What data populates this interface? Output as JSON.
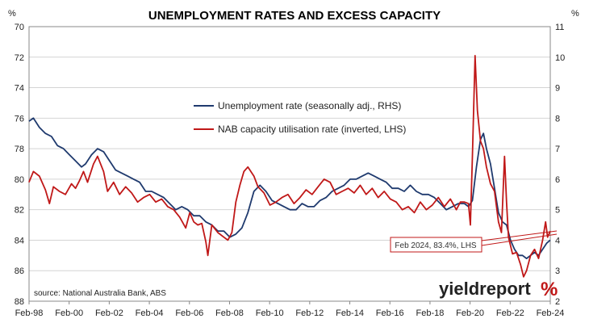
{
  "chart_data": {
    "type": "line",
    "title": "UNEMPLOYMENT RATES AND EXCESS CAPACITY",
    "left_axis": {
      "unit": "%",
      "min": 70,
      "max": 88,
      "inverted": true,
      "ticks": [
        "70",
        "72",
        "74",
        "76",
        "78",
        "80",
        "82",
        "84",
        "86",
        "88"
      ]
    },
    "right_axis": {
      "unit": "%",
      "min": 2,
      "max": 11,
      "ticks": [
        "11",
        "10",
        "9",
        "8",
        "7",
        "6",
        "5",
        "4",
        "3",
        "2"
      ]
    },
    "x_axis": {
      "start": 1998.083,
      "end": 2024.083,
      "tick_labels": [
        "Feb-98",
        "Feb-00",
        "Feb-02",
        "Feb-04",
        "Feb-06",
        "Feb-08",
        "Feb-10",
        "Feb-12",
        "Feb-14",
        "Feb-16",
        "Feb-18",
        "Feb-20",
        "Feb-22",
        "Feb-24"
      ]
    },
    "grid": "horizontal",
    "legend_position": "upper-center",
    "series": [
      {
        "name": "Unemployment rate (seasonally adj., RHS)",
        "axis": "right",
        "color": "#1f3a6e",
        "points": [
          [
            1998.08,
            7.9
          ],
          [
            1998.3,
            8.0
          ],
          [
            1998.6,
            7.7
          ],
          [
            1998.9,
            7.5
          ],
          [
            1999.2,
            7.4
          ],
          [
            1999.5,
            7.1
          ],
          [
            1999.8,
            7.0
          ],
          [
            2000.1,
            6.8
          ],
          [
            2000.4,
            6.6
          ],
          [
            2000.7,
            6.4
          ],
          [
            2000.9,
            6.5
          ],
          [
            2001.2,
            6.8
          ],
          [
            2001.5,
            7.0
          ],
          [
            2001.8,
            6.9
          ],
          [
            2002.1,
            6.6
          ],
          [
            2002.4,
            6.3
          ],
          [
            2002.7,
            6.2
          ],
          [
            2003.0,
            6.1
          ],
          [
            2003.3,
            6.0
          ],
          [
            2003.6,
            5.9
          ],
          [
            2003.9,
            5.6
          ],
          [
            2004.2,
            5.6
          ],
          [
            2004.5,
            5.5
          ],
          [
            2004.8,
            5.4
          ],
          [
            2005.1,
            5.2
          ],
          [
            2005.4,
            5.0
          ],
          [
            2005.7,
            5.1
          ],
          [
            2006.0,
            5.0
          ],
          [
            2006.3,
            4.8
          ],
          [
            2006.6,
            4.8
          ],
          [
            2006.9,
            4.6
          ],
          [
            2007.2,
            4.5
          ],
          [
            2007.5,
            4.3
          ],
          [
            2007.8,
            4.3
          ],
          [
            2008.1,
            4.1
          ],
          [
            2008.4,
            4.2
          ],
          [
            2008.7,
            4.4
          ],
          [
            2009.0,
            4.9
          ],
          [
            2009.3,
            5.6
          ],
          [
            2009.6,
            5.8
          ],
          [
            2009.9,
            5.6
          ],
          [
            2010.2,
            5.3
          ],
          [
            2010.5,
            5.2
          ],
          [
            2010.8,
            5.1
          ],
          [
            2011.1,
            5.0
          ],
          [
            2011.4,
            5.0
          ],
          [
            2011.7,
            5.2
          ],
          [
            2012.0,
            5.1
          ],
          [
            2012.3,
            5.1
          ],
          [
            2012.6,
            5.3
          ],
          [
            2012.9,
            5.4
          ],
          [
            2013.2,
            5.6
          ],
          [
            2013.5,
            5.7
          ],
          [
            2013.8,
            5.8
          ],
          [
            2014.1,
            6.0
          ],
          [
            2014.4,
            6.0
          ],
          [
            2014.7,
            6.1
          ],
          [
            2015.0,
            6.2
          ],
          [
            2015.3,
            6.1
          ],
          [
            2015.6,
            6.0
          ],
          [
            2015.9,
            5.9
          ],
          [
            2016.2,
            5.7
          ],
          [
            2016.5,
            5.7
          ],
          [
            2016.8,
            5.6
          ],
          [
            2017.1,
            5.8
          ],
          [
            2017.4,
            5.6
          ],
          [
            2017.7,
            5.5
          ],
          [
            2018.0,
            5.5
          ],
          [
            2018.3,
            5.4
          ],
          [
            2018.6,
            5.2
          ],
          [
            2018.9,
            5.0
          ],
          [
            2019.2,
            5.1
          ],
          [
            2019.5,
            5.2
          ],
          [
            2019.8,
            5.2
          ],
          [
            2020.0,
            5.1
          ],
          [
            2020.2,
            5.3
          ],
          [
            2020.4,
            6.4
          ],
          [
            2020.6,
            7.3
          ],
          [
            2020.75,
            7.5
          ],
          [
            2020.9,
            7.0
          ],
          [
            2021.1,
            6.5
          ],
          [
            2021.3,
            5.7
          ],
          [
            2021.5,
            4.9
          ],
          [
            2021.7,
            4.6
          ],
          [
            2021.9,
            4.5
          ],
          [
            2022.1,
            4.0
          ],
          [
            2022.3,
            3.7
          ],
          [
            2022.5,
            3.5
          ],
          [
            2022.7,
            3.5
          ],
          [
            2022.9,
            3.4
          ],
          [
            2023.1,
            3.5
          ],
          [
            2023.3,
            3.6
          ],
          [
            2023.5,
            3.5
          ],
          [
            2023.7,
            3.7
          ],
          [
            2023.9,
            3.9
          ],
          [
            2024.08,
            4.0
          ]
        ]
      },
      {
        "name": "NAB capacity utilisation rate (inverted, LHS)",
        "axis": "left",
        "color": "#c01818",
        "points": [
          [
            1998.08,
            80.2
          ],
          [
            1998.3,
            79.5
          ],
          [
            1998.6,
            79.8
          ],
          [
            1998.9,
            80.7
          ],
          [
            1999.1,
            81.6
          ],
          [
            1999.3,
            80.5
          ],
          [
            1999.6,
            80.8
          ],
          [
            1999.9,
            81.0
          ],
          [
            2000.2,
            80.3
          ],
          [
            2000.4,
            80.6
          ],
          [
            2000.6,
            80.1
          ],
          [
            2000.8,
            79.5
          ],
          [
            2001.0,
            80.2
          ],
          [
            2001.3,
            79.0
          ],
          [
            2001.5,
            78.5
          ],
          [
            2001.8,
            79.5
          ],
          [
            2002.0,
            80.8
          ],
          [
            2002.3,
            80.2
          ],
          [
            2002.6,
            81.0
          ],
          [
            2002.9,
            80.5
          ],
          [
            2003.2,
            80.9
          ],
          [
            2003.5,
            81.5
          ],
          [
            2003.8,
            81.2
          ],
          [
            2004.1,
            81.0
          ],
          [
            2004.4,
            81.5
          ],
          [
            2004.7,
            81.3
          ],
          [
            2005.0,
            81.8
          ],
          [
            2005.3,
            82.0
          ],
          [
            2005.6,
            82.5
          ],
          [
            2005.9,
            83.2
          ],
          [
            2006.1,
            82.2
          ],
          [
            2006.3,
            82.8
          ],
          [
            2006.5,
            83.0
          ],
          [
            2006.7,
            82.9
          ],
          [
            2006.9,
            84.1
          ],
          [
            2007.0,
            85.0
          ],
          [
            2007.2,
            83.0
          ],
          [
            2007.5,
            83.5
          ],
          [
            2007.8,
            83.8
          ],
          [
            2008.0,
            84.0
          ],
          [
            2008.2,
            83.5
          ],
          [
            2008.4,
            81.5
          ],
          [
            2008.6,
            80.4
          ],
          [
            2008.8,
            79.5
          ],
          [
            2009.0,
            79.2
          ],
          [
            2009.3,
            79.8
          ],
          [
            2009.5,
            80.5
          ],
          [
            2009.8,
            80.9
          ],
          [
            2010.1,
            81.7
          ],
          [
            2010.4,
            81.5
          ],
          [
            2010.7,
            81.2
          ],
          [
            2011.0,
            81.0
          ],
          [
            2011.3,
            81.6
          ],
          [
            2011.6,
            81.2
          ],
          [
            2011.9,
            80.7
          ],
          [
            2012.2,
            81.0
          ],
          [
            2012.5,
            80.5
          ],
          [
            2012.8,
            80.0
          ],
          [
            2013.1,
            80.2
          ],
          [
            2013.4,
            81.0
          ],
          [
            2013.7,
            80.8
          ],
          [
            2014.0,
            80.6
          ],
          [
            2014.3,
            80.9
          ],
          [
            2014.6,
            80.4
          ],
          [
            2014.9,
            81.0
          ],
          [
            2015.2,
            80.6
          ],
          [
            2015.5,
            81.2
          ],
          [
            2015.8,
            80.8
          ],
          [
            2016.1,
            81.3
          ],
          [
            2016.4,
            81.5
          ],
          [
            2016.7,
            82.0
          ],
          [
            2017.0,
            81.8
          ],
          [
            2017.3,
            82.2
          ],
          [
            2017.6,
            81.5
          ],
          [
            2017.9,
            82.0
          ],
          [
            2018.2,
            81.7
          ],
          [
            2018.5,
            81.2
          ],
          [
            2018.8,
            81.8
          ],
          [
            2019.1,
            81.3
          ],
          [
            2019.4,
            82.0
          ],
          [
            2019.6,
            81.5
          ],
          [
            2019.8,
            81.5
          ],
          [
            2020.0,
            81.6
          ],
          [
            2020.1,
            83.0
          ],
          [
            2020.2,
            78.5
          ],
          [
            2020.33,
            71.9
          ],
          [
            2020.45,
            75.5
          ],
          [
            2020.6,
            77.5
          ],
          [
            2020.75,
            78.0
          ],
          [
            2020.9,
            79.2
          ],
          [
            2021.1,
            80.3
          ],
          [
            2021.3,
            80.8
          ],
          [
            2021.5,
            82.8
          ],
          [
            2021.65,
            83.5
          ],
          [
            2021.8,
            78.5
          ],
          [
            2021.9,
            81.5
          ],
          [
            2022.0,
            83.8
          ],
          [
            2022.2,
            84.9
          ],
          [
            2022.4,
            84.8
          ],
          [
            2022.6,
            85.6
          ],
          [
            2022.75,
            86.4
          ],
          [
            2022.9,
            86.0
          ],
          [
            2023.1,
            85.0
          ],
          [
            2023.3,
            84.6
          ],
          [
            2023.5,
            85.2
          ],
          [
            2023.7,
            84.0
          ],
          [
            2023.85,
            82.8
          ],
          [
            2023.95,
            83.8
          ],
          [
            2024.08,
            83.4
          ]
        ]
      }
    ],
    "annotations": {
      "callout": "Feb 2024, 83.4%, LHS"
    },
    "source": "source: National Australia Bank, ABS"
  },
  "brand": {
    "name": "yieldreport",
    "symbol": "%"
  }
}
